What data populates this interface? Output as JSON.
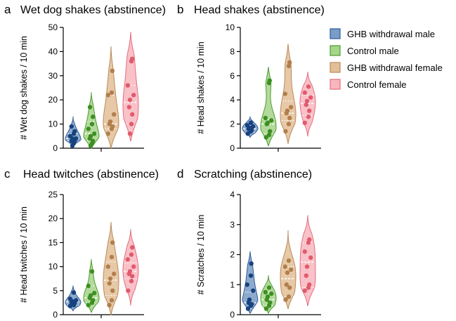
{
  "legend": {
    "entries": [
      "GHB withdrawal male",
      "Control male",
      "GHB withdrawal female",
      "Control female"
    ],
    "colors": [
      {
        "fill": "#7a9cc7",
        "stroke": "#2d5c98",
        "dot": "#17437f"
      },
      {
        "fill": "#a6d48a",
        "stroke": "#4c9c30",
        "dot": "#3d8f22"
      },
      {
        "fill": "#e3bf98",
        "stroke": "#b98a58",
        "dot": "#b27f4c"
      },
      {
        "fill": "#f8b6be",
        "stroke": "#e36f7e",
        "dot": "#e25a6d"
      }
    ]
  },
  "chart_data": [
    {
      "letter": "a",
      "type": "violin",
      "title": "Wet dog shakes (abstinence)",
      "ylabel": "# Wet dog shakes / 10 min",
      "ylim": [
        0,
        50
      ],
      "yticks": [
        0,
        10,
        20,
        30,
        40,
        50
      ],
      "series": [
        {
          "name": "GHB withdrawal male",
          "range": [
            1,
            13
          ],
          "median": 4,
          "q1": 3,
          "q3": 6,
          "points": [
            1,
            2,
            3,
            3,
            4,
            4,
            5,
            6,
            7,
            9
          ]
        },
        {
          "name": "Control male",
          "range": [
            0,
            23
          ],
          "median": 6,
          "q1": 3,
          "q3": 11,
          "points": [
            1,
            2,
            3,
            4,
            5,
            6,
            8,
            10,
            13,
            17
          ]
        },
        {
          "name": "GHB withdrawal female",
          "range": [
            0,
            42
          ],
          "median": 10,
          "q1": 8,
          "q3": 22,
          "points": [
            6,
            8,
            9,
            10,
            11,
            14,
            22,
            23,
            32
          ]
        },
        {
          "name": "Control female",
          "range": [
            3,
            48
          ],
          "median": 19,
          "q1": 10,
          "q3": 26,
          "points": [
            6,
            10,
            14,
            17,
            20,
            22,
            26,
            36,
            37
          ]
        }
      ]
    },
    {
      "letter": "b",
      "type": "violin",
      "title": "Head shakes (abstinence)",
      "ylabel": "# Head shakes / 10 min",
      "ylim": [
        0,
        10
      ],
      "yticks": [
        0,
        2,
        4,
        6,
        8,
        10
      ],
      "series": [
        {
          "name": "GHB withdrawal male",
          "range": [
            0.9,
            2.6
          ],
          "median": 1.6,
          "q1": 1.3,
          "q3": 1.9,
          "points": [
            1.2,
            1.4,
            1.5,
            1.6,
            1.7,
            1.8,
            1.9,
            2.1
          ]
        },
        {
          "name": "Control male",
          "range": [
            0.2,
            6.7
          ],
          "median": 2.0,
          "q1": 1.2,
          "q3": 2.4,
          "points": [
            0.9,
            1.1,
            1.4,
            2.0,
            2.1,
            2.3,
            2.5,
            5.4,
            5.6
          ]
        },
        {
          "name": "GHB withdrawal female",
          "range": [
            0.4,
            8.6
          ],
          "median": 2.9,
          "q1": 2.3,
          "q3": 3.9,
          "points": [
            1.4,
            2.0,
            2.5,
            2.9,
            3.1,
            3.4,
            4.5,
            6.8,
            7.1
          ]
        },
        {
          "name": "Control female",
          "range": [
            1.0,
            6.3
          ],
          "median": 3.7,
          "q1": 2.7,
          "q3": 4.4,
          "points": [
            2.1,
            2.6,
            3.1,
            3.6,
            3.9,
            4.2,
            4.6,
            5.1
          ]
        }
      ]
    },
    {
      "letter": "c",
      "type": "violin",
      "title": "Head twitches (abstinence)",
      "ylabel": "# Head twitches / 10 min",
      "ylim": [
        0,
        25
      ],
      "yticks": [
        0,
        5,
        10,
        15,
        20,
        25
      ],
      "series": [
        {
          "name": "GHB withdrawal male",
          "range": [
            0.8,
            6
          ],
          "median": 2.7,
          "q1": 2,
          "q3": 3.2,
          "points": [
            1.8,
            2.0,
            2.3,
            2.6,
            2.8,
            3.0,
            3.3,
            4.6
          ]
        },
        {
          "name": "Control male",
          "range": [
            0.5,
            11.5
          ],
          "median": 3.5,
          "q1": 2.5,
          "q3": 6,
          "points": [
            2,
            2.5,
            3,
            3.5,
            4,
            4.5,
            6,
            9
          ]
        },
        {
          "name": "GHB withdrawal female",
          "range": [
            0,
            19.2
          ],
          "median": 7.2,
          "q1": 4,
          "q3": 11,
          "points": [
            2,
            3,
            5,
            6.5,
            7.5,
            8.5,
            10,
            12,
            15
          ]
        },
        {
          "name": "Control female",
          "range": [
            2,
            17.7
          ],
          "median": 9,
          "q1": 7.5,
          "q3": 10.8,
          "points": [
            5,
            7,
            8,
            8.5,
            9,
            10,
            11.5,
            12.5,
            14
          ]
        }
      ]
    },
    {
      "letter": "d",
      "type": "violin",
      "title": "Scratching (abstinence)",
      "ylabel": "# Scratches / 10 min",
      "ylim": [
        0,
        4
      ],
      "yticks": [
        0,
        1,
        2,
        3,
        4
      ],
      "series": [
        {
          "name": "GHB withdrawal male",
          "range": [
            0.05,
            2.1
          ],
          "median": 0.4,
          "q1": 0.2,
          "q3": 0.75,
          "points": [
            0.2,
            0.3,
            0.35,
            0.4,
            0.5,
            0.8,
            1.0,
            1.3,
            1.7
          ]
        },
        {
          "name": "Control male",
          "range": [
            0.05,
            1.3
          ],
          "median": 0.5,
          "q1": 0.3,
          "q3": 0.75,
          "points": [
            0.2,
            0.3,
            0.4,
            0.5,
            0.6,
            0.7,
            0.75,
            0.9
          ]
        },
        {
          "name": "GHB withdrawal female",
          "range": [
            0.2,
            2.8
          ],
          "median": 1.2,
          "q1": 0.6,
          "q3": 1.6,
          "points": [
            0.5,
            0.6,
            0.9,
            1.0,
            1.4,
            1.5,
            1.6,
            1.8
          ]
        },
        {
          "name": "Control female",
          "range": [
            0.3,
            3.3
          ],
          "median": 1.75,
          "q1": 0.9,
          "q3": 2.4,
          "points": [
            0.8,
            0.9,
            1.0,
            1.3,
            1.6,
            1.9,
            2.1,
            2.4,
            2.5
          ]
        }
      ]
    }
  ]
}
